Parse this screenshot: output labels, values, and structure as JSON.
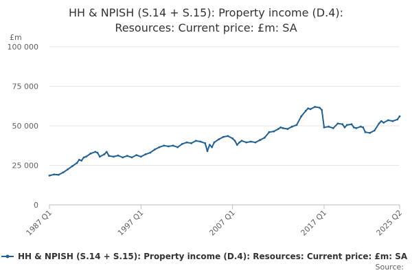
{
  "chart_data": {
    "type": "line",
    "title_line1": "HH & NPISH (S.14 + S.15): Property income (D.4):",
    "title_line2": "Resources: Current price: £m: SA",
    "unit": "£m",
    "ylim": [
      0,
      100000
    ],
    "yticks": [
      0,
      25000,
      50000,
      75000,
      100000
    ],
    "ytick_labels": [
      "0",
      "25 000",
      "50 000",
      "75 000",
      "100 000"
    ],
    "xlim": [
      1987.0,
      2025.25
    ],
    "xticks": [
      {
        "value": 1987.0,
        "label": "1987 Q1"
      },
      {
        "value": 1997.0,
        "label": "1997 Q1"
      },
      {
        "value": 2007.0,
        "label": "2007 Q1"
      },
      {
        "value": 2017.0,
        "label": "2017 Q1"
      },
      {
        "value": 2025.25,
        "label": "2025 Q2"
      }
    ],
    "grid": "horizontal",
    "legend_position": "bottom",
    "source_label": "Source:",
    "color": "#206095",
    "series": [
      {
        "name": "HH & NPISH (S.14 + S.15): Property income (D.4): Resources: Current price: £m: SA",
        "points": [
          [
            1987.0,
            18500
          ],
          [
            1987.5,
            19200
          ],
          [
            1988.0,
            19000
          ],
          [
            1988.5,
            20500
          ],
          [
            1989.0,
            22500
          ],
          [
            1989.5,
            24500
          ],
          [
            1990.0,
            26500
          ],
          [
            1990.25,
            28500
          ],
          [
            1990.5,
            28000
          ],
          [
            1990.75,
            30000
          ],
          [
            1991.0,
            30500
          ],
          [
            1991.5,
            32500
          ],
          [
            1992.0,
            33500
          ],
          [
            1992.25,
            33000
          ],
          [
            1992.5,
            30500
          ],
          [
            1993.0,
            32000
          ],
          [
            1993.25,
            33500
          ],
          [
            1993.5,
            31000
          ],
          [
            1994.0,
            30500
          ],
          [
            1994.5,
            31200
          ],
          [
            1995.0,
            30000
          ],
          [
            1995.5,
            31000
          ],
          [
            1996.0,
            30000
          ],
          [
            1996.5,
            31500
          ],
          [
            1997.0,
            30500
          ],
          [
            1997.5,
            32000
          ],
          [
            1998.0,
            33000
          ],
          [
            1998.5,
            35000
          ],
          [
            1999.0,
            36500
          ],
          [
            1999.5,
            37500
          ],
          [
            2000.0,
            37000
          ],
          [
            2000.5,
            37500
          ],
          [
            2001.0,
            36500
          ],
          [
            2001.5,
            38500
          ],
          [
            2002.0,
            39500
          ],
          [
            2002.5,
            39000
          ],
          [
            2003.0,
            40500
          ],
          [
            2003.5,
            40000
          ],
          [
            2004.0,
            39000
          ],
          [
            2004.25,
            34000
          ],
          [
            2004.5,
            38000
          ],
          [
            2004.75,
            36500
          ],
          [
            2005.0,
            39500
          ],
          [
            2005.5,
            41500
          ],
          [
            2006.0,
            43000
          ],
          [
            2006.5,
            43500
          ],
          [
            2007.0,
            42000
          ],
          [
            2007.25,
            40500
          ],
          [
            2007.5,
            38000
          ],
          [
            2007.75,
            39500
          ],
          [
            2008.0,
            40500
          ],
          [
            2008.5,
            39500
          ],
          [
            2009.0,
            40000
          ],
          [
            2009.5,
            39500
          ],
          [
            2010.0,
            41000
          ],
          [
            2010.5,
            42500
          ],
          [
            2011.0,
            46000
          ],
          [
            2011.5,
            46500
          ],
          [
            2012.0,
            48000
          ],
          [
            2012.25,
            49000
          ],
          [
            2012.5,
            48500
          ],
          [
            2013.0,
            48000
          ],
          [
            2013.5,
            49500
          ],
          [
            2014.0,
            50500
          ],
          [
            2014.5,
            56000
          ],
          [
            2015.0,
            59500
          ],
          [
            2015.25,
            61000
          ],
          [
            2015.5,
            60500
          ],
          [
            2016.0,
            62000
          ],
          [
            2016.5,
            61500
          ],
          [
            2016.75,
            60000
          ],
          [
            2017.0,
            49000
          ],
          [
            2017.5,
            49500
          ],
          [
            2018.0,
            48500
          ],
          [
            2018.5,
            51500
          ],
          [
            2019.0,
            51000
          ],
          [
            2019.25,
            49000
          ],
          [
            2019.5,
            50500
          ],
          [
            2020.0,
            51000
          ],
          [
            2020.25,
            49000
          ],
          [
            2020.5,
            48500
          ],
          [
            2021.0,
            49500
          ],
          [
            2021.25,
            49000
          ],
          [
            2021.5,
            46000
          ],
          [
            2022.0,
            45500
          ],
          [
            2022.5,
            47000
          ],
          [
            2023.0,
            51500
          ],
          [
            2023.25,
            53000
          ],
          [
            2023.5,
            52000
          ],
          [
            2024.0,
            53500
          ],
          [
            2024.5,
            53000
          ],
          [
            2025.0,
            54000
          ],
          [
            2025.25,
            56000
          ]
        ]
      }
    ]
  }
}
